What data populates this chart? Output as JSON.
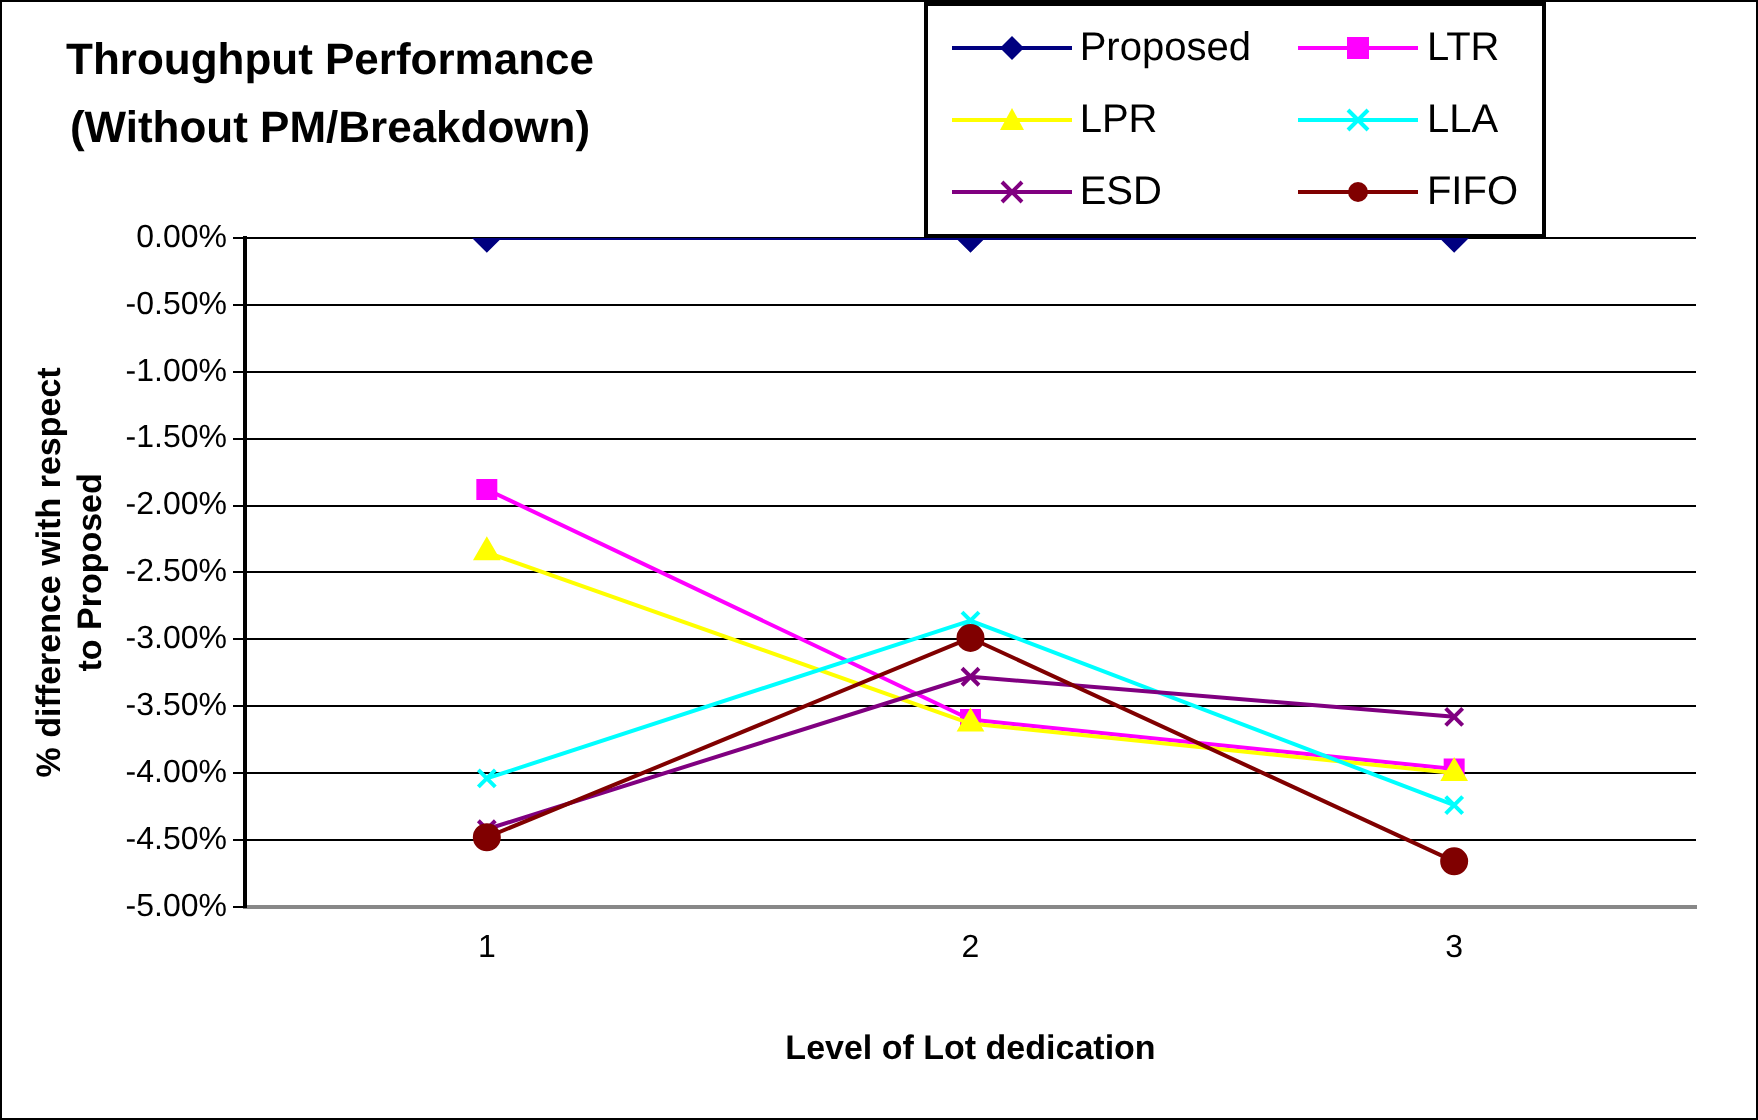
{
  "chart_data": {
    "type": "line",
    "title": "Throughput Performance\n(Without PM/Breakdown)",
    "xlabel": "Level of Lot dedication",
    "ylabel": "% difference with respect\nto Proposed",
    "categories": [
      "1",
      "2",
      "3"
    ],
    "series": [
      {
        "name": "Proposed",
        "color": "#000080",
        "marker": "diamond",
        "values": [
          0,
          0,
          0
        ]
      },
      {
        "name": "LTR",
        "color": "#ff00ff",
        "marker": "square",
        "values": [
          -1.88,
          -3.6,
          -3.97
        ]
      },
      {
        "name": "LPR",
        "color": "#ffff00",
        "marker": "triangle",
        "values": [
          -2.35,
          -3.63,
          -4.0
        ]
      },
      {
        "name": "LLA",
        "color": "#00ffff",
        "marker": "cross",
        "values": [
          -4.04,
          -2.86,
          -4.24
        ]
      },
      {
        "name": "ESD",
        "color": "#800080",
        "marker": "cross",
        "values": [
          -4.42,
          -3.28,
          -3.58
        ]
      },
      {
        "name": "FIFO",
        "color": "#800000",
        "marker": "circle",
        "values": [
          -4.48,
          -2.99,
          -4.66
        ]
      }
    ],
    "ylim": [
      -5,
      0
    ],
    "yticks": [
      {
        "value": 0,
        "label": "0.00%"
      },
      {
        "value": -0.5,
        "label": "-0.50%"
      },
      {
        "value": -1,
        "label": "-1.00%"
      },
      {
        "value": -1.5,
        "label": "-1.50%"
      },
      {
        "value": -2,
        "label": "-2.00%"
      },
      {
        "value": -2.5,
        "label": "-2.50%"
      },
      {
        "value": -3,
        "label": "-3.00%"
      },
      {
        "value": -3.5,
        "label": "-3.50%"
      },
      {
        "value": -4,
        "label": "-4.00%"
      },
      {
        "value": -4.5,
        "label": "-4.50%"
      },
      {
        "value": -5,
        "label": "-5.00%"
      }
    ],
    "grid": "y",
    "legend": "top right",
    "line_style": "solid"
  }
}
